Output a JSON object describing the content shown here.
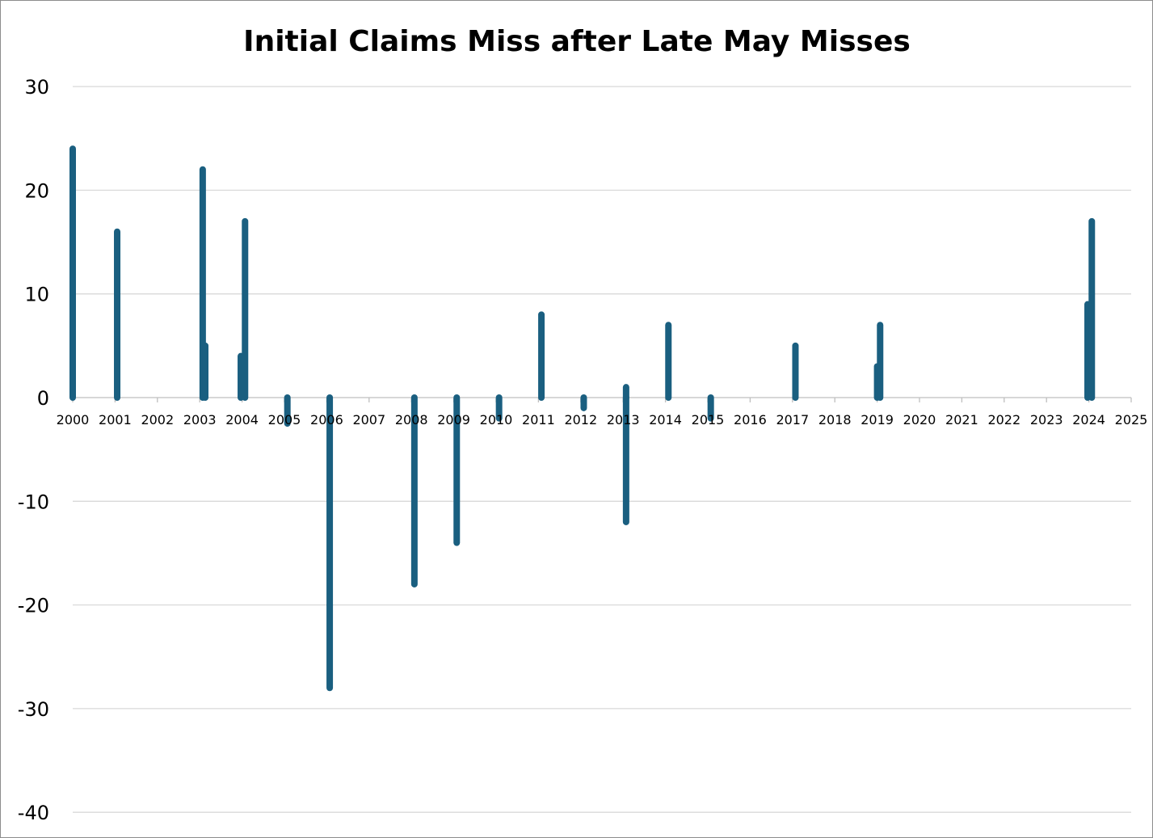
{
  "chart_data": {
    "type": "bar",
    "title": "Initial Claims Miss after Late May Misses",
    "xlabel": "",
    "ylabel": "",
    "ylim": [
      -40,
      30
    ],
    "yticks": [
      30,
      20,
      10,
      0,
      -10,
      -20,
      -30,
      -40
    ],
    "ytick_labels": [
      "30",
      "20",
      "10",
      "0",
      "-10",
      "-20",
      "-30",
      "-40"
    ],
    "categories": [
      "2000",
      "2001",
      "2002",
      "2003",
      "2004",
      "2005",
      "2006",
      "2007",
      "2008",
      "2009",
      "2010",
      "2011",
      "2012",
      "2013",
      "2014",
      "2015",
      "2016",
      "2017",
      "2018",
      "2019",
      "2020",
      "2021",
      "2022",
      "2023",
      "2024",
      "2025"
    ],
    "grid": true,
    "legend": "none",
    "bar_color": "#1a5f80",
    "points": [
      {
        "x": 2000.0,
        "y": 24
      },
      {
        "x": 2001.05,
        "y": 16
      },
      {
        "x": 2003.07,
        "y": 22
      },
      {
        "x": 2003.13,
        "y": 5
      },
      {
        "x": 2003.97,
        "y": 4
      },
      {
        "x": 2004.07,
        "y": 17
      },
      {
        "x": 2005.07,
        "y": -2.5
      },
      {
        "x": 2006.07,
        "y": -28
      },
      {
        "x": 2008.07,
        "y": -18
      },
      {
        "x": 2009.07,
        "y": -14
      },
      {
        "x": 2010.07,
        "y": -2
      },
      {
        "x": 2011.07,
        "y": 8
      },
      {
        "x": 2012.07,
        "y": -1
      },
      {
        "x": 2013.07,
        "y": 1
      },
      {
        "x": 2013.07,
        "y": -12
      },
      {
        "x": 2014.07,
        "y": 7
      },
      {
        "x": 2015.07,
        "y": -2
      },
      {
        "x": 2017.07,
        "y": 5
      },
      {
        "x": 2019.0,
        "y": 3
      },
      {
        "x": 2019.07,
        "y": 7
      },
      {
        "x": 2023.97,
        "y": 9
      },
      {
        "x": 2024.07,
        "y": 17
      }
    ]
  }
}
